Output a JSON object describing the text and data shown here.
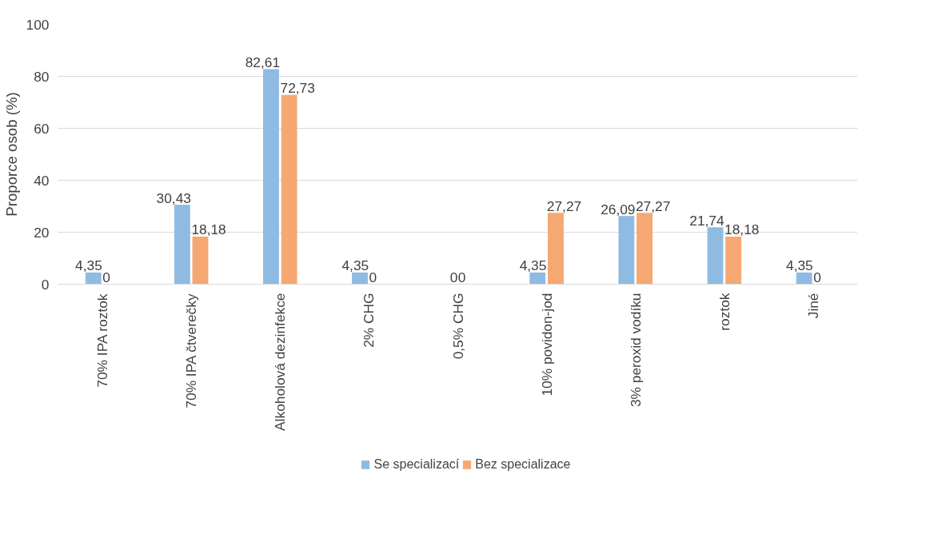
{
  "chart_data": {
    "type": "bar",
    "ylabel": "Proporce osob (%)",
    "categories": [
      "70% IPA roztok",
      "70% IPA čtverečky",
      "Alkoholová dezinfekce",
      "2% CHG",
      "0,5% CHG",
      "10% povidon-jod",
      "3% peroxid vodíku",
      "roztok",
      "Jiné"
    ],
    "series": [
      {
        "name": "Se specializací",
        "color": "#8fbbe3",
        "values": [
          4.35,
          30.43,
          82.61,
          4.35,
          0,
          4.35,
          26.09,
          21.74,
          4.35
        ],
        "value_labels": [
          "4,35",
          "30,43",
          "82,61",
          "4,35",
          "0",
          "4,35",
          "26,09",
          "21,74",
          "4,35"
        ]
      },
      {
        "name": "Bez specializace",
        "color": "#f5a871",
        "values": [
          0,
          18.18,
          72.73,
          0,
          0,
          27.27,
          27.27,
          18.18,
          0
        ],
        "value_labels": [
          "0",
          "18,18",
          "72,73",
          "0",
          "0",
          "27,27",
          "27,27",
          "18,18",
          "0"
        ]
      }
    ],
    "ylim": [
      0,
      100
    ],
    "yticks": [
      0,
      20,
      40,
      60,
      80,
      100
    ],
    "grid": "y",
    "legend": "bottom"
  }
}
